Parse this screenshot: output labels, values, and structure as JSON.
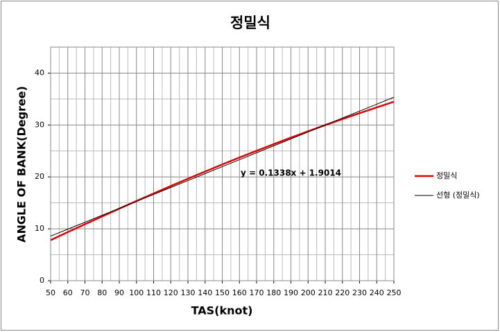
{
  "chart_data": {
    "type": "line",
    "title": "정밀식",
    "xlabel": "TAS(knot)",
    "ylabel": "ANGLE OF BANK(Degree)",
    "x": [
      50,
      60,
      70,
      80,
      90,
      100,
      110,
      120,
      130,
      140,
      150,
      160,
      170,
      180,
      190,
      200,
      210,
      220,
      230,
      240,
      250
    ],
    "series": [
      {
        "name": "정밀식",
        "color": "#e00000",
        "width": 2.5,
        "values": [
          7.82,
          9.36,
          10.88,
          12.39,
          13.89,
          15.36,
          16.81,
          18.24,
          19.65,
          21.03,
          22.4,
          23.73,
          25.03,
          26.31,
          27.56,
          28.78,
          29.98,
          31.14,
          32.28,
          33.39,
          34.48
        ]
      },
      {
        "name": "선형 (정밀식)",
        "color": "#000000",
        "width": 1,
        "values": [
          8.59,
          9.93,
          11.27,
          12.61,
          13.94,
          15.28,
          16.62,
          17.96,
          19.29,
          20.63,
          21.97,
          23.31,
          24.65,
          25.99,
          27.32,
          28.66,
          30.0,
          31.34,
          32.67,
          34.01,
          35.35
        ]
      }
    ],
    "annotation": "y = 0.1338x + 1.9014",
    "xlim": [
      50,
      250
    ],
    "xticks": [
      50,
      60,
      70,
      80,
      90,
      100,
      110,
      120,
      130,
      140,
      150,
      160,
      170,
      180,
      190,
      200,
      210,
      220,
      230,
      240,
      250
    ],
    "ylim": [
      0,
      45
    ],
    "yticks": [
      0,
      10,
      20,
      30,
      40
    ],
    "grid": true,
    "minor_grid": true,
    "legend": "right"
  }
}
